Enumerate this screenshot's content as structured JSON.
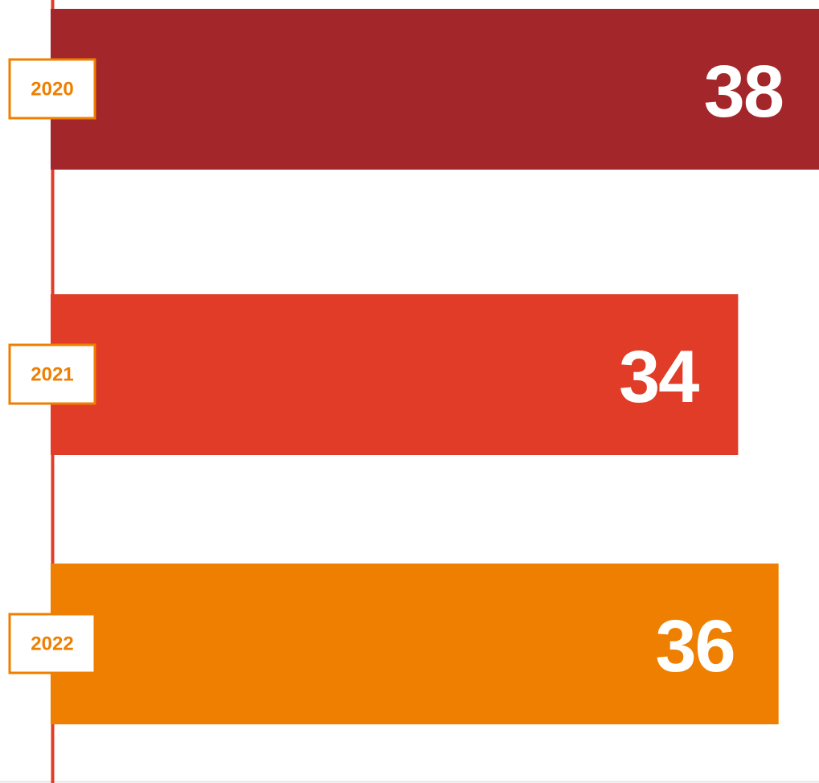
{
  "chart_data": {
    "type": "bar",
    "orientation": "horizontal",
    "categories": [
      "2020",
      "2021",
      "2022"
    ],
    "values": [
      38,
      34,
      36
    ],
    "colors": [
      "#a3262a",
      "#e03c28",
      "#ee7f00"
    ]
  }
}
